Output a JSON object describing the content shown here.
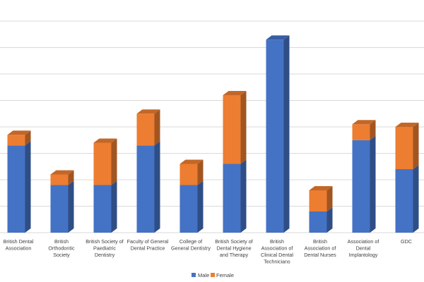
{
  "chart_data": {
    "type": "bar",
    "stacked": true,
    "style": "3d",
    "categories": [
      [
        "British Dental",
        "Association"
      ],
      [
        "British",
        "Orthodontic",
        "Society"
      ],
      [
        "British Society of",
        "Paediatric",
        "Dentistry"
      ],
      [
        "Faculty of General",
        "Dental Practice"
      ],
      [
        "College of",
        "General Dentistry"
      ],
      [
        "British Society of",
        "Dental Hygiene",
        "and Therapy"
      ],
      [
        "British",
        "Association of",
        "Clinical Dental",
        "Technicians"
      ],
      [
        "British",
        "Association of",
        "Dental Nurses"
      ],
      [
        "Association of",
        "Dental",
        "Implantology"
      ],
      [
        "GDC"
      ]
    ],
    "series": [
      {
        "name": "Male",
        "color": "#4472C4",
        "values": [
          3.3,
          1.8,
          1.8,
          3.3,
          1.8,
          2.6,
          7.3,
          0.8,
          3.5,
          2.4
        ]
      },
      {
        "name": "Female",
        "color": "#ED7D31",
        "values": [
          0.4,
          0.4,
          1.6,
          1.2,
          0.8,
          2.6,
          0.0,
          0.8,
          0.6,
          1.6
        ]
      }
    ],
    "ylim": [
      0,
      8
    ],
    "gridlines": true,
    "legend_position": "bottom",
    "title": "",
    "xlabel": "",
    "ylabel": ""
  }
}
